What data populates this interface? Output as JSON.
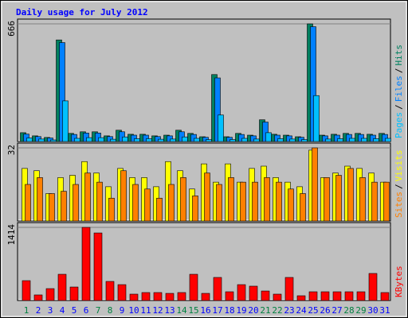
{
  "chart_data": [
    {
      "type": "bar",
      "title": "Daily usage for July 2012",
      "legend_separator": "/",
      "ylim": [
        0,
        666
      ],
      "yticks": [
        666
      ],
      "grid": true,
      "series": [
        {
          "name": "Pages",
          "color": "#00c0ff",
          "values": [
            20,
            14,
            9,
            230,
            18,
            22,
            22,
            13,
            26,
            16,
            16,
            13,
            14,
            26,
            18,
            11,
            150,
            11,
            18,
            14,
            50,
            16,
            14,
            11,
            260,
            14,
            16,
            18,
            18,
            16,
            18
          ]
        },
        {
          "name": "Files",
          "color": "#0080ff",
          "values": [
            42,
            28,
            20,
            560,
            40,
            48,
            48,
            28,
            55,
            36,
            36,
            28,
            32,
            55,
            40,
            24,
            360,
            24,
            40,
            32,
            110,
            36,
            32,
            24,
            650,
            32,
            36,
            40,
            40,
            36,
            40
          ]
        },
        {
          "name": "Hits",
          "color": "#008060",
          "values": [
            50,
            32,
            23,
            575,
            46,
            55,
            55,
            32,
            64,
            41,
            41,
            32,
            36,
            64,
            46,
            27,
            379,
            27,
            46,
            36,
            123,
            41,
            36,
            27,
            666,
            36,
            41,
            46,
            46,
            41,
            46
          ]
        }
      ]
    },
    {
      "type": "bar",
      "legend_separator": "/",
      "ylim": [
        0,
        32
      ],
      "yticks": [
        32
      ],
      "grid": true,
      "series": [
        {
          "name": "Sites",
          "color": "#ff8000",
          "values": [
            16,
            19,
            12,
            13,
            16,
            21,
            17,
            10,
            22,
            16,
            14,
            10,
            16,
            19,
            11,
            21,
            16,
            19,
            17,
            17,
            19,
            17,
            14,
            12,
            32,
            19,
            20,
            23,
            19,
            17,
            17
          ]
        },
        {
          "name": "Visits",
          "color": "#ffff00",
          "values": [
            23,
            22,
            12,
            19,
            20,
            26,
            21,
            15,
            23,
            19,
            19,
            15,
            26,
            22,
            14,
            25,
            17,
            25,
            17,
            23,
            24,
            19,
            17,
            15,
            31,
            19,
            21,
            24,
            23,
            21,
            17
          ]
        }
      ]
    },
    {
      "type": "bar",
      "ylim": [
        0,
        1414
      ],
      "yticks": [
        1414
      ],
      "grid": true,
      "series": [
        {
          "name": "KBytes",
          "color": "#ff0000",
          "values": [
            384,
            108,
            230,
            507,
            261,
            1414,
            1306,
            369,
            307,
            123,
            154,
            154,
            138,
            154,
            507,
            138,
            446,
            169,
            307,
            277,
            184,
            123,
            446,
            92,
            169,
            169,
            169,
            169,
            169,
            523,
            154
          ]
        }
      ],
      "categories": [
        "1",
        "2",
        "3",
        "4",
        "5",
        "6",
        "7",
        "8",
        "9",
        "10",
        "11",
        "12",
        "13",
        "14",
        "15",
        "16",
        "17",
        "18",
        "19",
        "20",
        "21",
        "22",
        "23",
        "24",
        "25",
        "26",
        "27",
        "28",
        "29",
        "30",
        "31"
      ],
      "category_colors": [
        "#008040",
        "#0000ff",
        "#0000ff",
        "#0000ff",
        "#0000ff",
        "#0000ff",
        "#008040",
        "#008040",
        "#0000ff",
        "#0000ff",
        "#0000ff",
        "#0000ff",
        "#0000ff",
        "#008040",
        "#008040",
        "#0000ff",
        "#0000ff",
        "#0000ff",
        "#0000ff",
        "#0000ff",
        "#008040",
        "#008040",
        "#0000ff",
        "#0000ff",
        "#0000ff",
        "#0000ff",
        "#0000ff",
        "#008040",
        "#008040",
        "#0000ff",
        "#0000ff"
      ]
    }
  ]
}
